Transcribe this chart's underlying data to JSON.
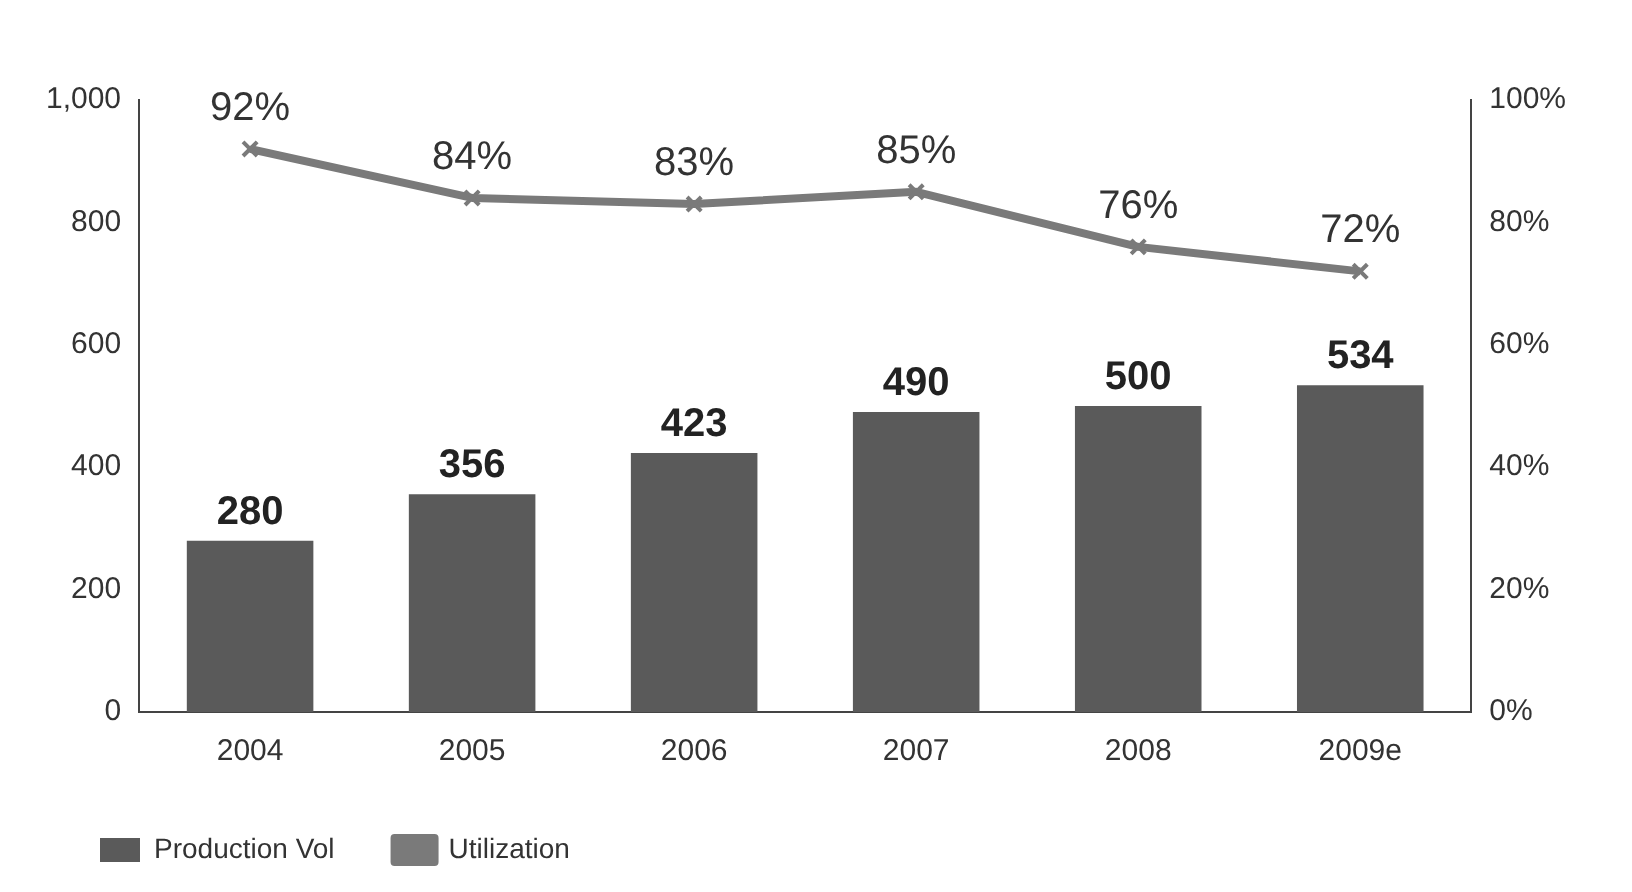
{
  "chart_data": {
    "type": "bar",
    "categories": [
      "2004",
      "2005",
      "2006",
      "2007",
      "2008",
      "2009e"
    ],
    "series": [
      {
        "name": "Production Vol",
        "color": "#5a5a5a",
        "values": [
          280,
          356,
          423,
          490,
          500,
          534
        ],
        "value_labels": [
          "280",
          "356",
          "423",
          "490",
          "500",
          "534"
        ]
      },
      {
        "name": "Utilization",
        "type": "line",
        "axis": "y2",
        "color": "#7a7a7a",
        "values": [
          92,
          84,
          83,
          85,
          76,
          72
        ],
        "value_labels": [
          "92%",
          "84%",
          "83%",
          "85%",
          "76%",
          "72%"
        ],
        "marker": "cross"
      }
    ],
    "ylim": [
      0,
      1000
    ],
    "yticks": [
      0,
      200,
      400,
      600,
      800,
      {
        "value": 1000,
        "label": "1,000"
      }
    ],
    "y2lim": [
      0,
      100
    ],
    "y2ticks": [
      {
        "value": 0,
        "label": "0%"
      },
      {
        "value": 20,
        "label": "20%"
      },
      {
        "value": 40,
        "label": "40%"
      },
      {
        "value": 60,
        "label": "60%"
      },
      {
        "value": 80,
        "label": "80%"
      },
      {
        "value": 100,
        "label": "100%"
      }
    ],
    "grid": false,
    "legend": "bottom left"
  }
}
